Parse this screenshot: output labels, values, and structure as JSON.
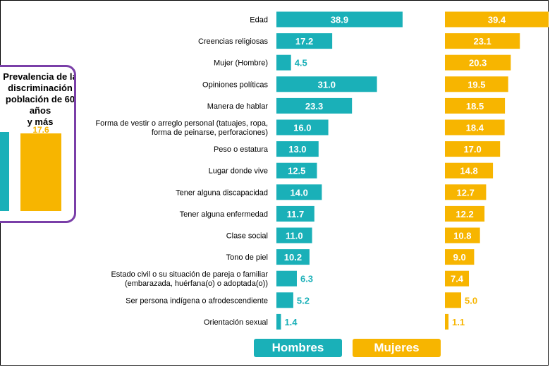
{
  "inset": {
    "title_lines": [
      "Prevalencia de la",
      "discriminación",
      "población de 60 años",
      "y más"
    ],
    "bars": [
      {
        "name": "Hombres",
        "value": null,
        "color": "#1ab0b8",
        "label": ""
      },
      {
        "name": "Mujeres",
        "value": 17.6,
        "color": "#f7b500",
        "label": "17.6"
      }
    ]
  },
  "chart_data": {
    "type": "bar",
    "orientation": "horizontal",
    "categories": [
      [
        "Edad"
      ],
      [
        "Creencias religiosas"
      ],
      [
        "Mujer (Hombre)"
      ],
      [
        "Opiniones políticas"
      ],
      [
        "Manera de hablar"
      ],
      [
        "Forma de vestir o arreglo personal (tatuajes, ropa,",
        "forma de peinarse, perforaciones)"
      ],
      [
        "Peso o estatura"
      ],
      [
        "Lugar donde vive"
      ],
      [
        "Tener alguna discapacidad"
      ],
      [
        "Tener alguna enfermedad"
      ],
      [
        "Clase social"
      ],
      [
        "Tono de piel"
      ],
      [
        "Estado civil o su situación de pareja o familiar",
        "(embarazada, huérfana(o) o adoptada(o))"
      ],
      [
        "Ser persona indígena o afrodescendiente"
      ],
      [
        "Orientación sexual"
      ]
    ],
    "series": [
      {
        "name": "Hombres",
        "color": "#1ab0b8",
        "values": [
          38.9,
          17.2,
          4.5,
          31.0,
          23.3,
          16.0,
          13.0,
          12.5,
          14.0,
          11.7,
          11.0,
          10.2,
          6.3,
          5.2,
          1.4
        ]
      },
      {
        "name": "Mujeres",
        "color": "#f7b500",
        "values": [
          39.4,
          23.1,
          20.3,
          19.5,
          18.5,
          18.4,
          17.0,
          14.8,
          12.7,
          12.2,
          10.8,
          9.0,
          7.4,
          5.0,
          1.1
        ]
      }
    ],
    "value_labels": {
      "Hombres": [
        "38.9",
        "17.2",
        "4.5",
        "31.0",
        "23.3",
        "16.0",
        "13.0",
        "12.5",
        "14.0",
        "11.7",
        "11.0",
        "10.2",
        "6.3",
        "5.2",
        "1.4"
      ],
      "Mujeres": [
        "39.4",
        "23.1",
        "20.3",
        "19.5",
        "18.5",
        "18.4",
        "17.0",
        "14.8",
        "12.7",
        "12.2",
        "10.8",
        "9.0",
        "7.4",
        "5.0",
        "1.1"
      ]
    },
    "legend": {
      "placement": "bottom",
      "labels": [
        "Hombres",
        "Mujeres"
      ]
    },
    "grid": false
  }
}
